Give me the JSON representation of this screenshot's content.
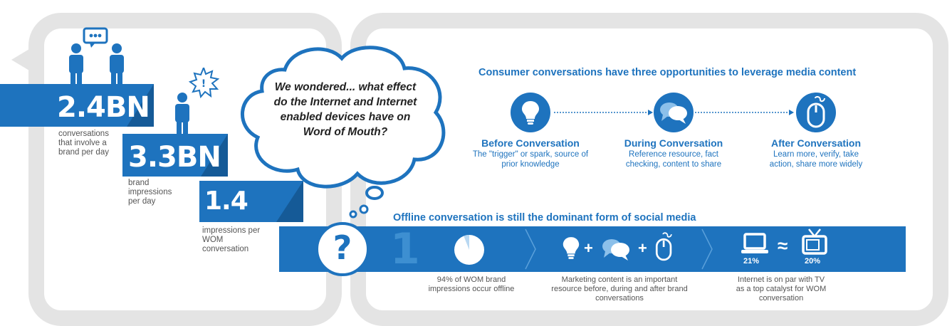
{
  "left_panel": {
    "stats": [
      {
        "value": "2.4BN",
        "caption": "conversations that involve a brand per day"
      },
      {
        "value": "3.3BN",
        "caption": "brand impressions per day"
      },
      {
        "value": "1.4",
        "caption": "impressions per WOM conversation"
      }
    ],
    "alert_symbol": "!"
  },
  "thought_bubble": {
    "text": "We wondered... what effect do the Internet and Internet enabled devices have on Word of Mouth?"
  },
  "opportunities": {
    "heading": "Consumer conversations have three opportunities to leverage media content",
    "items": [
      {
        "title": "Before Conversation",
        "text": "The \"trigger\" or spark, source of prior knowledge",
        "icon": "lightbulb-icon"
      },
      {
        "title": "During Conversation",
        "text": "Reference resource, fact checking, content to share",
        "icon": "speech-bubbles-icon"
      },
      {
        "title": "After Conversation",
        "text": "Learn more, verify, take action, share more widely",
        "icon": "mouse-icon"
      }
    ]
  },
  "offline": {
    "heading": "Offline conversation is still the dominant form of social media",
    "question_mark": "?",
    "rank": "1",
    "facts": [
      {
        "text": "94% of WOM brand impressions occur offline",
        "pie_share": 0.94
      },
      {
        "text": "Marketing content is an important resource before, during and after brand conversations"
      },
      {
        "text": "Internet is on par with TV as a top catalyst for WOM conversation",
        "laptop_pct": "21%",
        "tv_pct": "20%",
        "approx": "≈"
      }
    ],
    "plus": "+"
  },
  "colors": {
    "primary": "#1e73be",
    "panel": "#e4e4e4",
    "text_gray": "#555555"
  }
}
